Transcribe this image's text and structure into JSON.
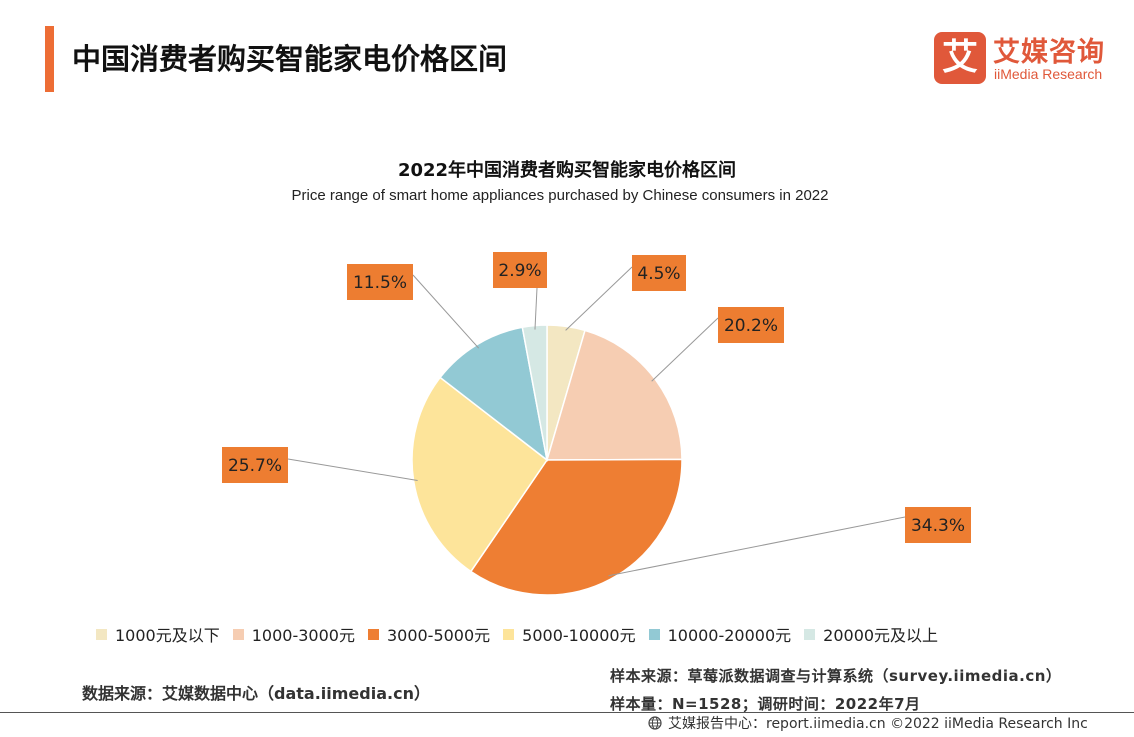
{
  "header": {
    "title": "中国消费者购买智能家电价格区间",
    "accent_color": "#ED6D35"
  },
  "logo": {
    "glyph": "艾",
    "name_cn": "艾媒咨询",
    "name_en": "iiMedia Research",
    "color": "#E0583A"
  },
  "chart_data": {
    "type": "pie",
    "title": "2022年中国消费者购买智能家电价格区间",
    "subtitle": "Price range of smart home appliances purchased by Chinese consumers in 2022",
    "unit": "%",
    "legend_position": "bottom",
    "slices": [
      {
        "label": "1000元及以下",
        "value": 4.5,
        "display": "4.5%",
        "color": "#F3E7C2"
      },
      {
        "label": "1000-3000元",
        "value": 20.2,
        "display": "20.2%",
        "color": "#F6CDB2"
      },
      {
        "label": "3000-5000元",
        "value": 34.3,
        "display": "34.3%",
        "color": "#EE7E33"
      },
      {
        "label": "5000-10000元",
        "value": 25.7,
        "display": "25.7%",
        "color": "#FDE49A"
      },
      {
        "label": "10000-20000元",
        "value": 11.5,
        "display": "11.5%",
        "color": "#92C9D4"
      },
      {
        "label": "20000元及以上",
        "value": 2.9,
        "display": "2.9%",
        "color": "#D5E8E4"
      }
    ],
    "label_box_color": "#ED7D31"
  },
  "sources": {
    "left": "数据来源：艾媒数据中心（data.iimedia.cn）",
    "sample_source": "样本来源：草莓派数据调查与计算系统（survey.iimedia.cn）",
    "sample_size": "样本量：N=1528；调研时间：2022年7月"
  },
  "footer": {
    "text": "艾媒报告中心：report.iimedia.cn  ©2022  iiMedia Research  Inc",
    "icon": "globe-icon"
  }
}
